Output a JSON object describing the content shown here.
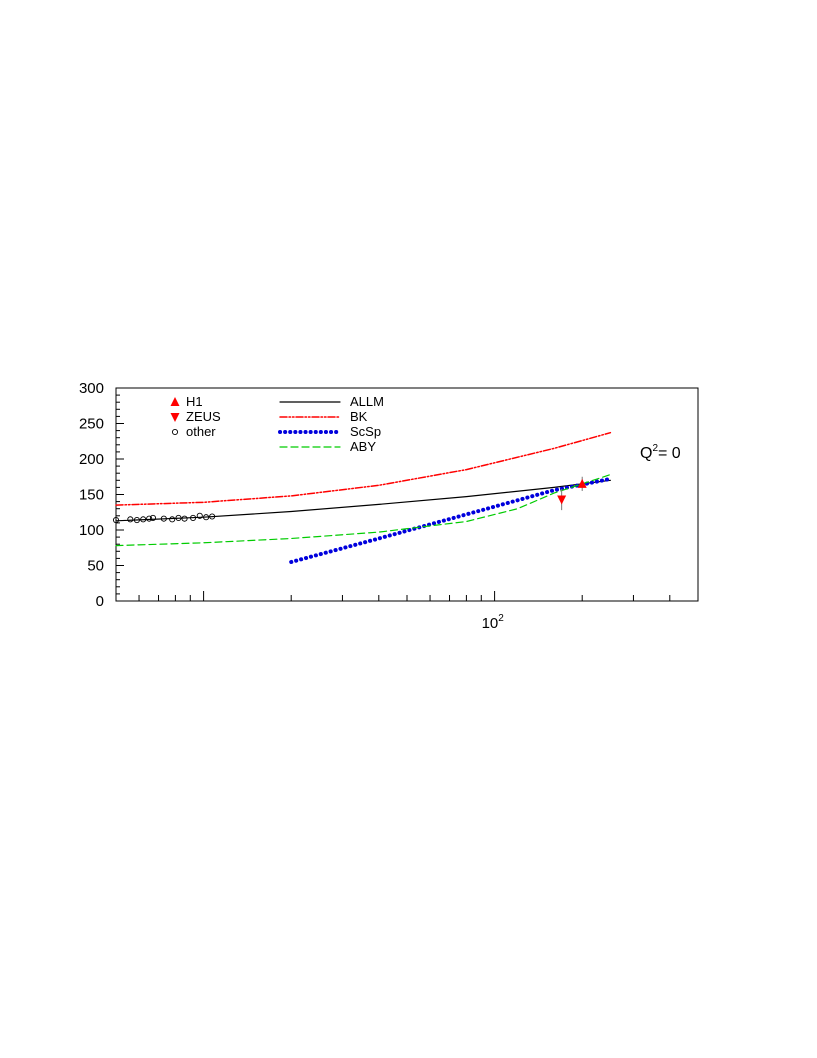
{
  "chart_data": {
    "type": "line",
    "title": "",
    "xlabel": "",
    "ylabel": "",
    "xscale": "log",
    "xlim": [
      5,
      500
    ],
    "ylim": [
      0,
      300
    ],
    "yticks": [
      0,
      50,
      100,
      150,
      200,
      250,
      300
    ],
    "xtick_labels": [
      {
        "value": 100,
        "base": "10",
        "exp": "2"
      }
    ],
    "annotation": {
      "base": "Q",
      "sup": "2",
      "rest": "= 0"
    },
    "legend_position": "top-left",
    "colors": {
      "H1": "#ff0000",
      "ZEUS": "#ff0000",
      "other": "#000000",
      "ALLM": "#000000",
      "BK": "#ff0000",
      "ScSp": "#0000dd",
      "ABY": "#00cc00"
    },
    "markers": [
      {
        "name": "H1",
        "marker": "triangle-up",
        "points": [
          {
            "x": 200,
            "y": 165,
            "err": 10
          }
        ]
      },
      {
        "name": "ZEUS",
        "marker": "triangle-down",
        "points": [
          {
            "x": 170,
            "y": 143,
            "err": 15
          }
        ]
      },
      {
        "name": "other",
        "marker": "circle-open",
        "points": [
          {
            "x": 5.0,
            "y": 114
          },
          {
            "x": 5.6,
            "y": 115
          },
          {
            "x": 5.9,
            "y": 114
          },
          {
            "x": 6.2,
            "y": 115
          },
          {
            "x": 6.5,
            "y": 116
          },
          {
            "x": 6.7,
            "y": 117
          },
          {
            "x": 7.3,
            "y": 116
          },
          {
            "x": 7.8,
            "y": 115
          },
          {
            "x": 8.2,
            "y": 117
          },
          {
            "x": 8.6,
            "y": 116
          },
          {
            "x": 9.2,
            "y": 117
          },
          {
            "x": 9.7,
            "y": 120
          },
          {
            "x": 10.2,
            "y": 118
          },
          {
            "x": 10.7,
            "y": 119
          }
        ]
      }
    ],
    "series": [
      {
        "name": "ALLM",
        "style": "solid",
        "points": [
          [
            5,
            113
          ],
          [
            10,
            118
          ],
          [
            20,
            126
          ],
          [
            40,
            136
          ],
          [
            80,
            147
          ],
          [
            160,
            160
          ],
          [
            250,
            170
          ]
        ]
      },
      {
        "name": "BK",
        "style": "dash-dot",
        "points": [
          [
            5,
            135
          ],
          [
            10,
            139
          ],
          [
            20,
            148
          ],
          [
            40,
            163
          ],
          [
            80,
            185
          ],
          [
            160,
            215
          ],
          [
            250,
            237
          ]
        ]
      },
      {
        "name": "ScSp",
        "style": "dotted",
        "points": [
          [
            20,
            55
          ],
          [
            40,
            88
          ],
          [
            80,
            122
          ],
          [
            160,
            156
          ],
          [
            250,
            172
          ]
        ]
      },
      {
        "name": "ABY",
        "style": "dashed",
        "points": [
          [
            5,
            78
          ],
          [
            10,
            82
          ],
          [
            20,
            88
          ],
          [
            40,
            97
          ],
          [
            80,
            112
          ],
          [
            120,
            130
          ],
          [
            160,
            152
          ],
          [
            250,
            178
          ]
        ]
      }
    ]
  }
}
